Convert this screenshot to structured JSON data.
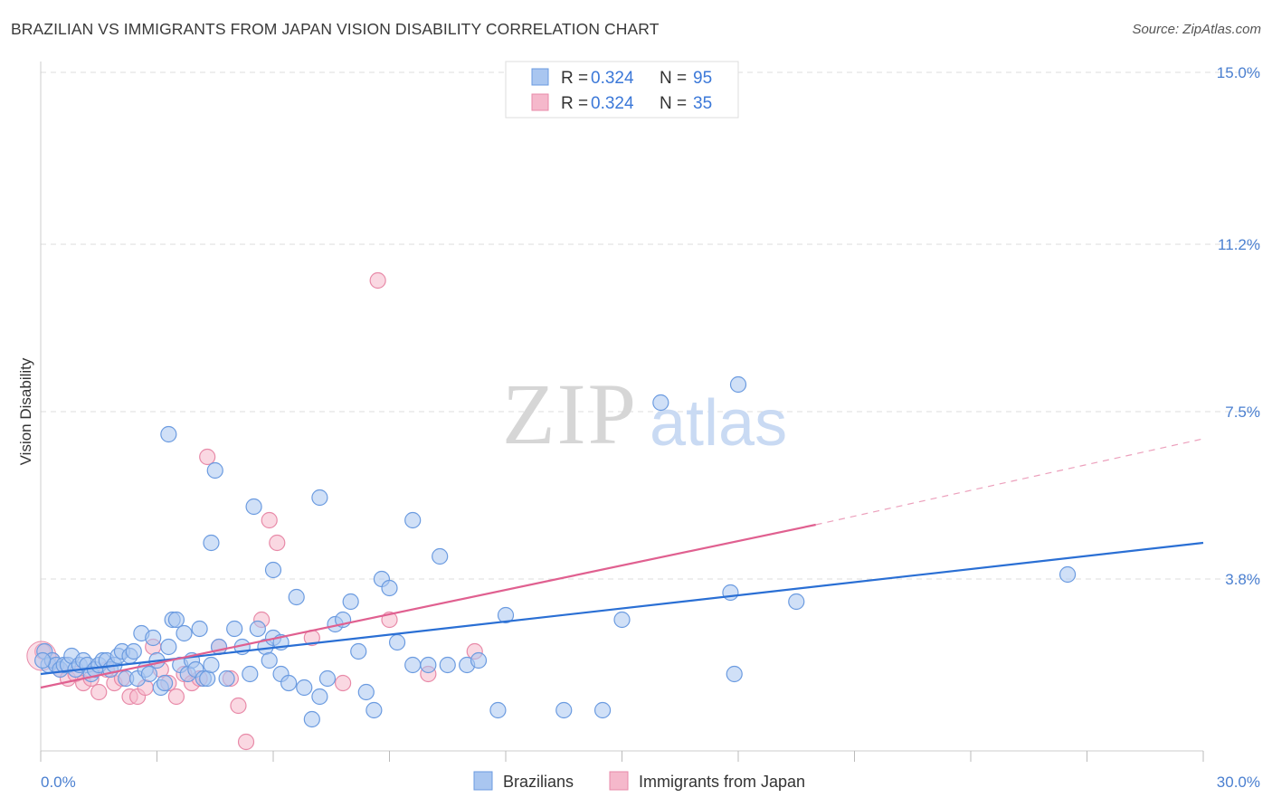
{
  "title": "BRAZILIAN VS IMMIGRANTS FROM JAPAN VISION DISABILITY CORRELATION CHART",
  "source": "Source: ZipAtlas.com",
  "watermark": {
    "zip": "ZIP",
    "atlas": "atlas"
  },
  "legend": {
    "rows": [
      {
        "r_label": "R = ",
        "r_value": "0.324",
        "n_label": "N = ",
        "n_value": "95"
      },
      {
        "r_label": "R = ",
        "r_value": "0.324",
        "n_label": "N = ",
        "n_value": "35"
      }
    ]
  },
  "colors": {
    "blue_fill": "#a9c6f0",
    "blue_stroke": "#6b9be0",
    "blue_line": "#2a6fd4",
    "pink_fill": "#f5b8cb",
    "pink_stroke": "#e88aa8",
    "pink_line": "#e06090",
    "tick_text": "#4a7fd0",
    "grid": "#dddddd"
  },
  "chart_data": {
    "type": "scatter",
    "title": "BRAZILIAN VS IMMIGRANTS FROM JAPAN VISION DISABILITY CORRELATION CHART",
    "xlabel": "",
    "ylabel": "Vision Disability",
    "xlim": [
      0,
      30
    ],
    "ylim": [
      0,
      15
    ],
    "x_tick_labels": [
      "0.0%",
      "30.0%"
    ],
    "y_tick_values": [
      3.8,
      7.5,
      11.2,
      15.0
    ],
    "y_tick_labels": [
      "3.8%",
      "7.5%",
      "11.2%",
      "15.0%"
    ],
    "grid": true,
    "legend_position": "top-center",
    "series": [
      {
        "name": "Brazilians",
        "color": "#a9c6f0",
        "trend": {
          "x": [
            0,
            30
          ],
          "y": [
            1.7,
            4.6
          ]
        },
        "points": [
          [
            0.1,
            2.2
          ],
          [
            0.2,
            1.9
          ],
          [
            0.3,
            2.0
          ],
          [
            0.4,
            1.9
          ],
          [
            0.5,
            1.8
          ],
          [
            0.6,
            1.9
          ],
          [
            0.7,
            1.9
          ],
          [
            0.8,
            2.1
          ],
          [
            0.9,
            1.8
          ],
          [
            1.0,
            1.9
          ],
          [
            1.1,
            2.0
          ],
          [
            1.2,
            1.9
          ],
          [
            1.3,
            1.7
          ],
          [
            1.4,
            1.8
          ],
          [
            1.5,
            1.9
          ],
          [
            1.6,
            2.0
          ],
          [
            1.7,
            2.0
          ],
          [
            1.8,
            1.8
          ],
          [
            1.9,
            1.9
          ],
          [
            2.0,
            2.1
          ],
          [
            2.1,
            2.2
          ],
          [
            2.2,
            1.6
          ],
          [
            2.3,
            2.1
          ],
          [
            2.4,
            2.2
          ],
          [
            2.5,
            1.6
          ],
          [
            2.6,
            2.6
          ],
          [
            2.7,
            1.8
          ],
          [
            2.8,
            1.7
          ],
          [
            2.9,
            2.5
          ],
          [
            3.0,
            2.0
          ],
          [
            3.1,
            1.4
          ],
          [
            3.2,
            1.5
          ],
          [
            3.3,
            2.3
          ],
          [
            3.4,
            2.9
          ],
          [
            3.5,
            2.9
          ],
          [
            3.6,
            1.9
          ],
          [
            3.7,
            2.6
          ],
          [
            3.8,
            1.7
          ],
          [
            3.9,
            2.0
          ],
          [
            4.0,
            1.8
          ],
          [
            4.1,
            2.7
          ],
          [
            4.2,
            1.6
          ],
          [
            4.3,
            1.6
          ],
          [
            4.4,
            1.9
          ],
          [
            4.6,
            2.3
          ],
          [
            4.8,
            1.6
          ],
          [
            5.0,
            2.7
          ],
          [
            5.2,
            2.3
          ],
          [
            5.4,
            1.7
          ],
          [
            5.6,
            2.7
          ],
          [
            5.8,
            2.3
          ],
          [
            5.9,
            2.0
          ],
          [
            6.0,
            2.5
          ],
          [
            6.2,
            1.7
          ],
          [
            6.4,
            1.5
          ],
          [
            6.6,
            3.4
          ],
          [
            6.8,
            1.4
          ],
          [
            7.0,
            0.7
          ],
          [
            7.2,
            1.2
          ],
          [
            7.4,
            1.6
          ],
          [
            7.6,
            2.8
          ],
          [
            7.8,
            2.9
          ],
          [
            8.0,
            3.3
          ],
          [
            8.2,
            2.2
          ],
          [
            8.4,
            1.3
          ],
          [
            8.6,
            0.9
          ],
          [
            8.8,
            3.8
          ],
          [
            9.0,
            3.6
          ],
          [
            9.2,
            2.4
          ],
          [
            9.6,
            1.9
          ],
          [
            10.0,
            1.9
          ],
          [
            10.5,
            1.9
          ],
          [
            11.0,
            1.9
          ],
          [
            11.3,
            2.0
          ],
          [
            11.8,
            0.9
          ],
          [
            12.0,
            3.0
          ],
          [
            13.5,
            0.9
          ],
          [
            14.5,
            0.9
          ],
          [
            15.0,
            2.9
          ],
          [
            16.0,
            7.7
          ],
          [
            17.8,
            3.5
          ],
          [
            17.9,
            1.7
          ],
          [
            19.5,
            3.3
          ],
          [
            26.5,
            3.9
          ],
          [
            18.0,
            8.1
          ],
          [
            3.3,
            7.0
          ],
          [
            4.5,
            6.2
          ],
          [
            5.5,
            5.4
          ],
          [
            7.2,
            5.6
          ],
          [
            9.6,
            5.1
          ],
          [
            10.3,
            4.3
          ],
          [
            4.4,
            4.6
          ],
          [
            6.0,
            4.0
          ],
          [
            6.2,
            2.4
          ],
          [
            0.05,
            2.0
          ]
        ]
      },
      {
        "name": "Immigrants from Japan",
        "color": "#f5b8cb",
        "trend": {
          "x": [
            0,
            20
          ],
          "y": [
            1.4,
            5.0
          ],
          "dashed_to": {
            "x": 30,
            "y": 6.9
          }
        },
        "points": [
          [
            0.05,
            2.2
          ],
          [
            0.3,
            2.0
          ],
          [
            0.5,
            1.8
          ],
          [
            0.7,
            1.6
          ],
          [
            0.9,
            1.7
          ],
          [
            1.1,
            1.5
          ],
          [
            1.3,
            1.6
          ],
          [
            1.5,
            1.3
          ],
          [
            1.7,
            1.8
          ],
          [
            1.9,
            1.5
          ],
          [
            2.1,
            1.6
          ],
          [
            2.3,
            1.2
          ],
          [
            2.5,
            1.2
          ],
          [
            2.7,
            1.4
          ],
          [
            2.9,
            2.3
          ],
          [
            3.1,
            1.8
          ],
          [
            3.3,
            1.5
          ],
          [
            3.5,
            1.2
          ],
          [
            3.7,
            1.7
          ],
          [
            3.9,
            1.5
          ],
          [
            4.1,
            1.6
          ],
          [
            4.3,
            6.5
          ],
          [
            4.6,
            2.3
          ],
          [
            4.9,
            1.6
          ],
          [
            5.1,
            1.0
          ],
          [
            5.3,
            0.2
          ],
          [
            5.7,
            2.9
          ],
          [
            5.9,
            5.1
          ],
          [
            6.1,
            4.6
          ],
          [
            7.0,
            2.5
          ],
          [
            7.8,
            1.5
          ],
          [
            8.7,
            10.4
          ],
          [
            9.0,
            2.9
          ],
          [
            10.0,
            1.7
          ],
          [
            11.2,
            2.2
          ]
        ]
      }
    ]
  },
  "bottom_legend": {
    "items": [
      "Brazilians",
      "Immigrants from Japan"
    ]
  }
}
